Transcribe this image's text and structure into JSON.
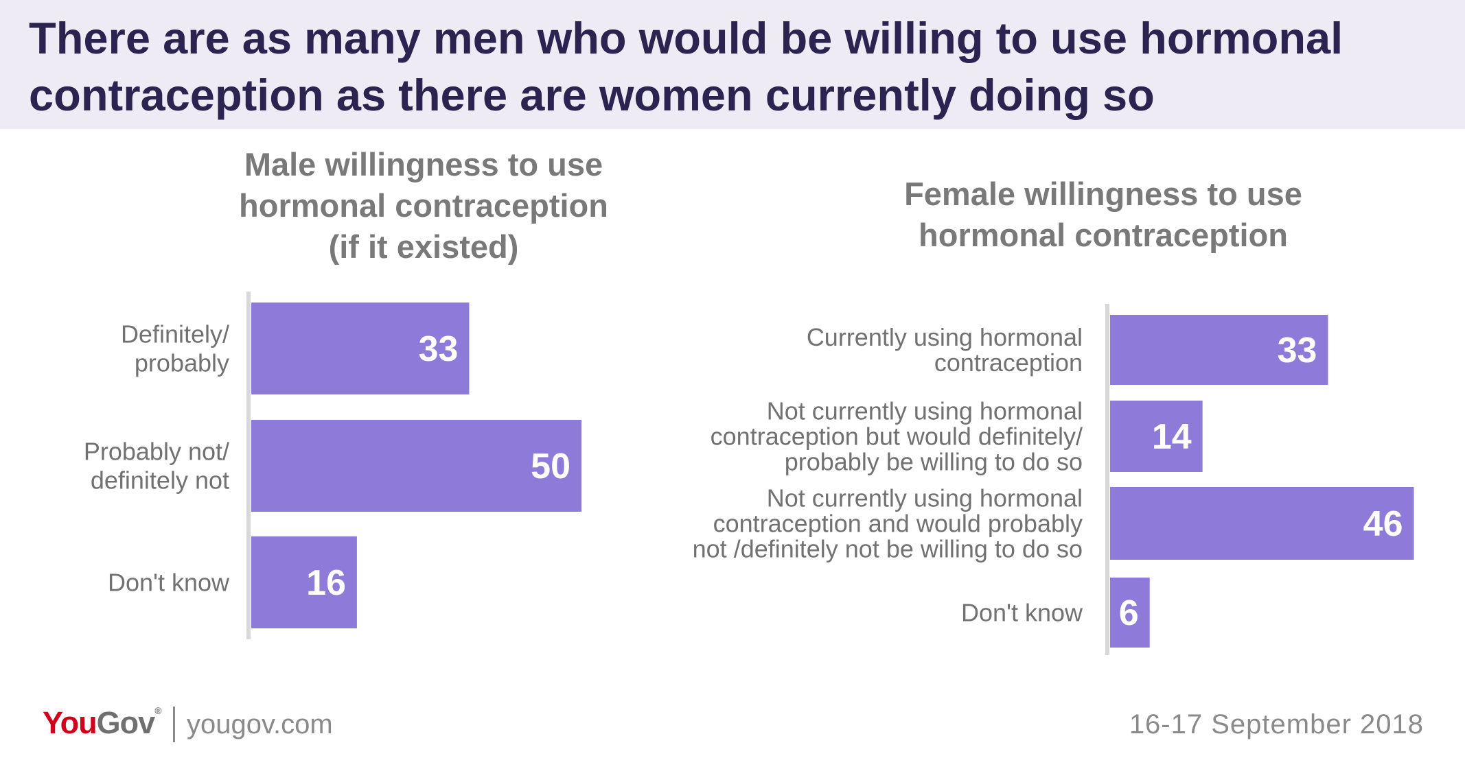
{
  "headline": "There are as many men who would be willing to use hormonal contraception as there are women currently doing so",
  "colors": {
    "bar": "#8e7ad8",
    "bar_label": "#ffffff",
    "category_text": "#717171",
    "axis": "#d8d8d8",
    "header_bg": "#eeebf5",
    "headline": "#2b2450",
    "brand_red": "#d0021b"
  },
  "chart_data": [
    {
      "type": "bar",
      "orientation": "horizontal",
      "title_lines": [
        "Male willingness to use",
        "hormonal contraception",
        "(if it existed)"
      ],
      "categories": [
        [
          "Definitely/",
          "probably"
        ],
        [
          "Probably not/",
          "definitely not"
        ],
        [
          "Don't know"
        ]
      ],
      "values": [
        33,
        50,
        16
      ],
      "value_labels": [
        "33",
        "50",
        "16"
      ],
      "xlim": [
        0,
        50
      ]
    },
    {
      "type": "bar",
      "orientation": "horizontal",
      "title_lines": [
        "Female willingness to use",
        "hormonal contraception"
      ],
      "categories": [
        [
          "Currently using hormonal",
          "contraception"
        ],
        [
          "Not currently using hormonal",
          "contraception but would definitely/",
          "probably be willing to do so"
        ],
        [
          "Not currently using hormonal",
          "contraception and would probably",
          "not /definitely not be willing to do so"
        ],
        [
          "Don't know"
        ]
      ],
      "values": [
        33,
        14,
        46,
        6
      ],
      "value_labels": [
        "33",
        "14",
        "46",
        "6"
      ],
      "xlim": [
        0,
        46
      ]
    }
  ],
  "footer": {
    "brand_you": "YouGov",
    "brand_mark": "®",
    "url": "yougov.com",
    "date": "16-17 September 2018"
  }
}
